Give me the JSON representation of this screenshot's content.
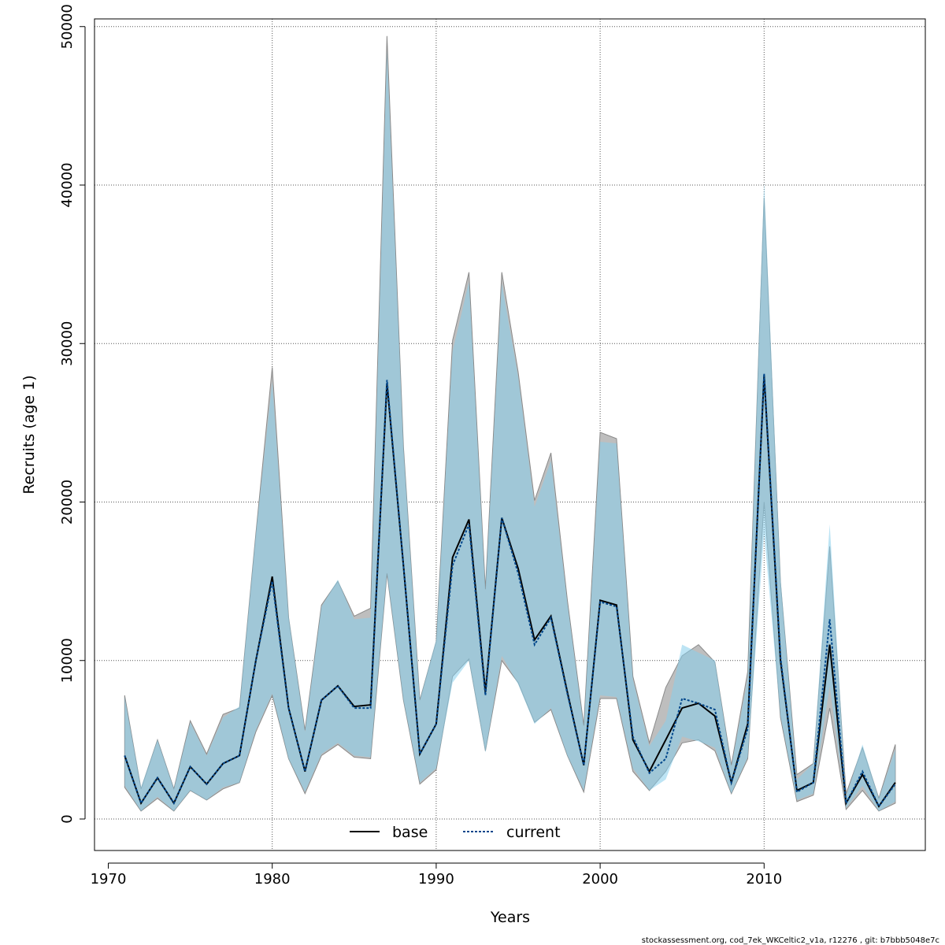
{
  "chart_data": {
    "type": "area",
    "xlabel": "Years",
    "ylabel": "Recruits (age 1)",
    "xlim": [
      1970,
      2018
    ],
    "ylim": [
      0,
      50000
    ],
    "xticks": [
      1970,
      1980,
      1990,
      2000,
      2010
    ],
    "yticks": [
      0,
      10000,
      20000,
      30000,
      40000,
      50000
    ],
    "grid": true,
    "legend_position": "bottom",
    "credit": "stockassessment.org, cod_7ek_WKCeltic2_v1a, r12276 , git: b7bbb5048e7c",
    "x": [
      1971,
      1972,
      1973,
      1974,
      1975,
      1976,
      1977,
      1978,
      1979,
      1980,
      1981,
      1982,
      1983,
      1984,
      1985,
      1986,
      1987,
      1988,
      1989,
      1990,
      1991,
      1992,
      1993,
      1994,
      1995,
      1996,
      1997,
      1998,
      1999,
      2000,
      2001,
      2002,
      2003,
      2004,
      2005,
      2006,
      2007,
      2008,
      2009,
      2010,
      2011,
      2012,
      2013,
      2014,
      2015,
      2016,
      2017,
      2018
    ],
    "series": [
      {
        "name": "base",
        "color": "#000000",
        "dash": "solid",
        "band_color": "#bebebe",
        "values": [
          4000,
          1000,
          2600,
          1000,
          3300,
          2200,
          3500,
          4000,
          10000,
          15300,
          7000,
          3000,
          7500,
          8400,
          7100,
          7200,
          27500,
          16000,
          4100,
          6000,
          16500,
          18900,
          8000,
          19000,
          15800,
          11300,
          12800,
          8000,
          3400,
          13800,
          13500,
          5000,
          3000,
          5000,
          7000,
          7300,
          6500,
          2300,
          6000,
          28000,
          10000,
          1800,
          2300,
          11000,
          1000,
          2800,
          800,
          2300
        ],
        "lower": [
          2000,
          500,
          1300,
          500,
          1800,
          1200,
          1900,
          2300,
          5500,
          7800,
          3800,
          1600,
          4000,
          4700,
          3900,
          3800,
          15500,
          7500,
          2200,
          3100,
          9000,
          10100,
          4300,
          10000,
          8600,
          6100,
          6900,
          4000,
          1700,
          7600,
          7600,
          3000,
          1800,
          3000,
          4800,
          5000,
          4300,
          1600,
          3800,
          20000,
          6400,
          1100,
          1500,
          7000,
          600,
          1800,
          500,
          1000
        ],
        "upper": [
          7800,
          1900,
          5000,
          1900,
          6200,
          4100,
          6600,
          7000,
          18000,
          28500,
          12700,
          5600,
          13500,
          15000,
          12800,
          13300,
          49400,
          23500,
          7500,
          11200,
          30200,
          34500,
          14500,
          34500,
          28200,
          20100,
          23100,
          13800,
          5900,
          24400,
          24000,
          9000,
          4800,
          8300,
          10300,
          11000,
          9900,
          3400,
          9300,
          39200,
          14900,
          2800,
          3500,
          17200,
          1600,
          4500,
          1300,
          4700
        ]
      },
      {
        "name": "current",
        "color": "#00468b",
        "dash": "dotted",
        "band_color": "#87ceeb",
        "values": [
          4000,
          1000,
          2600,
          1000,
          3300,
          2200,
          3500,
          4000,
          10000,
          15000,
          7000,
          3000,
          7500,
          8400,
          7000,
          7000,
          27700,
          16000,
          4100,
          6000,
          16000,
          18600,
          7800,
          19000,
          15500,
          11000,
          12700,
          7900,
          3400,
          13700,
          13400,
          5200,
          2900,
          3800,
          7600,
          7300,
          6900,
          2300,
          5700,
          28100,
          10200,
          1700,
          2300,
          12600,
          1000,
          3000,
          800,
          2200
        ],
        "lower": [
          2100,
          500,
          1400,
          500,
          1800,
          1200,
          2000,
          2300,
          5600,
          7900,
          3800,
          1700,
          4100,
          4800,
          4000,
          3900,
          15500,
          7500,
          2300,
          3200,
          8600,
          10000,
          4200,
          10300,
          8500,
          6000,
          7000,
          4000,
          1800,
          7800,
          7700,
          3200,
          1800,
          2500,
          5200,
          4900,
          4500,
          1600,
          3900,
          18000,
          6500,
          1200,
          1600,
          8400,
          700,
          2100,
          500,
          1100
        ],
        "upper": [
          7700,
          2000,
          5000,
          1900,
          6100,
          4000,
          6400,
          7100,
          18000,
          27600,
          12800,
          5500,
          13400,
          15100,
          12600,
          12700,
          48500,
          23500,
          7500,
          11300,
          29500,
          33900,
          14400,
          33800,
          27900,
          19700,
          22600,
          13600,
          5800,
          23800,
          23700,
          8800,
          4600,
          6200,
          11000,
          10500,
          10000,
          3300,
          8900,
          40200,
          15200,
          2500,
          3500,
          18600,
          1400,
          4700,
          1300,
          4400
        ]
      }
    ]
  }
}
